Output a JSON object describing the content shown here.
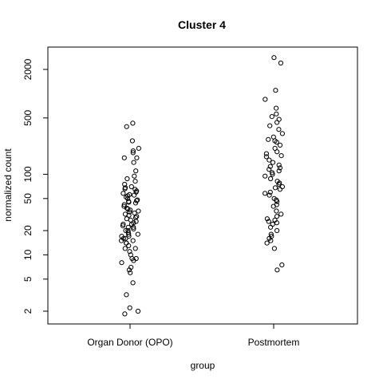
{
  "chart_data": {
    "type": "scatter",
    "title": "Cluster 4",
    "xlabel": "group",
    "ylabel": "normalized count",
    "y_scale": "log",
    "ylim": [
      1.6,
      3500
    ],
    "yticks": [
      2,
      5,
      10,
      20,
      50,
      100,
      500,
      2000
    ],
    "categories": [
      "Organ Donor (OPO)",
      "Postmortem"
    ],
    "grid": false,
    "series": [
      {
        "category": "Organ Donor (OPO)",
        "values": [
          430,
          390,
          260,
          210,
          195,
          185,
          160,
          160,
          140,
          110,
          95,
          88,
          82,
          75,
          70,
          68,
          66,
          65,
          62,
          60,
          58,
          56,
          55,
          54,
          52,
          50,
          48,
          47,
          46,
          45,
          44,
          42,
          40,
          38,
          37,
          36,
          35,
          34,
          33,
          32,
          31,
          30,
          29,
          28,
          27,
          26,
          25,
          24,
          24,
          23,
          22,
          22,
          21,
          20,
          20,
          19,
          18,
          18,
          17,
          17,
          16,
          16,
          15,
          15,
          14,
          14,
          13,
          12,
          12,
          11,
          10,
          9,
          9,
          8.5,
          8,
          7,
          6.5,
          6,
          4.5,
          3.2,
          2.2,
          2.0,
          1.85
        ]
      },
      {
        "category": "Postmortem",
        "values": [
          2800,
          2400,
          1100,
          850,
          660,
          560,
          520,
          480,
          440,
          400,
          360,
          320,
          290,
          270,
          260,
          250,
          230,
          210,
          190,
          180,
          170,
          165,
          150,
          140,
          130,
          125,
          120,
          115,
          110,
          105,
          100,
          95,
          88,
          82,
          78,
          75,
          70,
          68,
          65,
          60,
          58,
          55,
          50,
          48,
          46,
          42,
          40,
          35,
          32,
          30,
          28,
          27,
          26,
          25,
          24,
          22,
          20,
          18,
          17,
          16,
          15,
          14,
          12,
          7.5,
          6.5
        ]
      }
    ]
  }
}
